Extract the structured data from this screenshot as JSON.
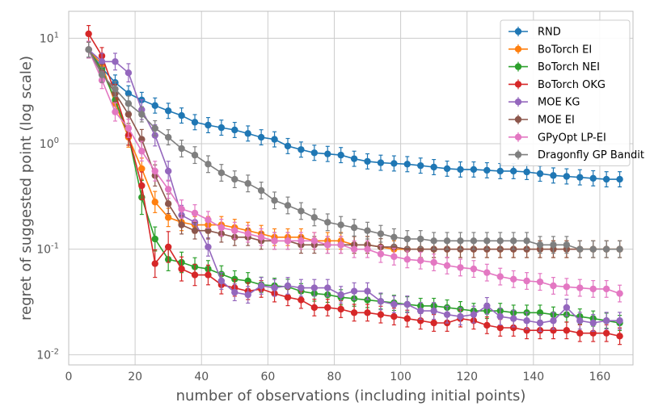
{
  "chart_data": {
    "type": "line",
    "xlabel": "number of observations (including initial points)",
    "ylabel": "regret of suggested point (log scale)",
    "xlim": [
      0,
      170
    ],
    "ylim": [
      0.008,
      18
    ],
    "yscale": "log",
    "xticks": [
      "0",
      "20",
      "40",
      "60",
      "80",
      "100",
      "120",
      "140",
      "160"
    ],
    "yticks": [
      {
        "base": "10",
        "exp": "-2",
        "value": 0.01
      },
      {
        "base": "10",
        "exp": "-1",
        "value": 0.1
      },
      {
        "base": "10",
        "exp": "0",
        "value": 1
      },
      {
        "base": "10",
        "exp": "1",
        "value": 10
      }
    ],
    "legend_position": "top-right",
    "grid": true,
    "series": [
      {
        "name": "RND",
        "color": "#1f77b4",
        "x": [
          6,
          10,
          14,
          18,
          22,
          26,
          30,
          34,
          38,
          42,
          46,
          50,
          54,
          58,
          62,
          66,
          70,
          74,
          78,
          82,
          86,
          90,
          94,
          98,
          102,
          106,
          110,
          114,
          118,
          122,
          126,
          130,
          134,
          138,
          142,
          146,
          150,
          154,
          158,
          162,
          166
        ],
        "y": [
          7.8,
          5.2,
          3.8,
          3.0,
          2.6,
          2.3,
          2.05,
          1.85,
          1.6,
          1.5,
          1.42,
          1.35,
          1.25,
          1.15,
          1.1,
          0.95,
          0.88,
          0.82,
          0.8,
          0.78,
          0.72,
          0.68,
          0.66,
          0.65,
          0.64,
          0.62,
          0.6,
          0.58,
          0.57,
          0.57,
          0.56,
          0.55,
          0.55,
          0.54,
          0.52,
          0.5,
          0.49,
          0.48,
          0.47,
          0.46,
          0.46
        ],
        "err": [
          0.18,
          0.18,
          0.18,
          0.18,
          0.18,
          0.18,
          0.18,
          0.18,
          0.18,
          0.18,
          0.18,
          0.18,
          0.18,
          0.18,
          0.18,
          0.18,
          0.18,
          0.18,
          0.18,
          0.18,
          0.18,
          0.18,
          0.18,
          0.18,
          0.18,
          0.18,
          0.18,
          0.18,
          0.18,
          0.18,
          0.18,
          0.18,
          0.18,
          0.18,
          0.18,
          0.18,
          0.18,
          0.18,
          0.18,
          0.18,
          0.18
        ]
      },
      {
        "name": "BoTorch EI",
        "color": "#ff7f0e",
        "x": [
          6,
          10,
          14,
          18,
          22,
          26,
          30,
          34,
          38,
          42,
          46,
          50,
          54,
          58,
          62,
          66,
          70,
          74,
          78,
          82,
          86,
          90,
          94,
          98,
          102,
          106,
          110,
          114,
          118,
          122,
          126,
          130,
          134,
          138,
          142,
          146,
          150,
          154,
          158,
          162,
          166
        ],
        "y": [
          7.8,
          5.6,
          2.4,
          1.15,
          0.58,
          0.28,
          0.2,
          0.18,
          0.17,
          0.17,
          0.17,
          0.16,
          0.15,
          0.14,
          0.13,
          0.13,
          0.13,
          0.12,
          0.12,
          0.12,
          0.11,
          0.11,
          0.105,
          0.1,
          0.1,
          0.1,
          0.1,
          0.1,
          0.1,
          0.1,
          0.1,
          0.1,
          0.1,
          0.1,
          0.1,
          0.1,
          0.1,
          0.1,
          0.1,
          0.1,
          0.1
        ],
        "err": [
          0.2,
          0.2,
          0.22,
          0.24,
          0.26,
          0.26,
          0.22,
          0.2,
          0.2,
          0.2,
          0.2,
          0.2,
          0.2,
          0.2,
          0.2,
          0.2,
          0.2,
          0.2,
          0.2,
          0.2,
          0.2,
          0.2,
          0.2,
          0.2,
          0.2,
          0.2,
          0.2,
          0.2,
          0.2,
          0.2,
          0.2,
          0.2,
          0.2,
          0.2,
          0.2,
          0.2,
          0.2,
          0.2,
          0.2,
          0.2,
          0.2
        ]
      },
      {
        "name": "BoTorch NEI",
        "color": "#2ca02c",
        "x": [
          6,
          10,
          14,
          18,
          22,
          26,
          30,
          34,
          38,
          42,
          46,
          50,
          54,
          58,
          62,
          66,
          70,
          74,
          78,
          82,
          86,
          90,
          94,
          98,
          102,
          106,
          110,
          114,
          118,
          122,
          126,
          130,
          134,
          138,
          142,
          146,
          150,
          154,
          158,
          162,
          166
        ],
        "y": [
          7.8,
          5.0,
          2.6,
          1.2,
          0.31,
          0.125,
          0.08,
          0.075,
          0.068,
          0.065,
          0.058,
          0.052,
          0.05,
          0.046,
          0.045,
          0.044,
          0.04,
          0.038,
          0.037,
          0.035,
          0.034,
          0.033,
          0.032,
          0.031,
          0.03,
          0.029,
          0.029,
          0.028,
          0.027,
          0.026,
          0.026,
          0.026,
          0.025,
          0.025,
          0.025,
          0.024,
          0.024,
          0.023,
          0.022,
          0.021,
          0.02
        ],
        "err": [
          0.2,
          0.2,
          0.22,
          0.24,
          0.45,
          0.3,
          0.28,
          0.25,
          0.22,
          0.2,
          0.2,
          0.2,
          0.2,
          0.18,
          0.18,
          0.18,
          0.18,
          0.18,
          0.18,
          0.18,
          0.18,
          0.18,
          0.18,
          0.18,
          0.18,
          0.18,
          0.18,
          0.18,
          0.18,
          0.18,
          0.18,
          0.18,
          0.18,
          0.18,
          0.18,
          0.18,
          0.18,
          0.18,
          0.18,
          0.18,
          0.18
        ]
      },
      {
        "name": "BoTorch OKG",
        "color": "#d62728",
        "x": [
          6,
          10,
          14,
          18,
          22,
          26,
          30,
          34,
          38,
          42,
          46,
          50,
          54,
          58,
          62,
          66,
          70,
          74,
          78,
          82,
          86,
          90,
          94,
          98,
          102,
          106,
          110,
          114,
          118,
          122,
          126,
          130,
          134,
          138,
          142,
          146,
          150,
          154,
          158,
          162,
          166
        ],
        "y": [
          11.0,
          6.8,
          3.0,
          1.2,
          0.4,
          0.073,
          0.105,
          0.065,
          0.057,
          0.057,
          0.046,
          0.043,
          0.04,
          0.042,
          0.038,
          0.035,
          0.033,
          0.028,
          0.028,
          0.027,
          0.025,
          0.025,
          0.024,
          0.023,
          0.022,
          0.021,
          0.02,
          0.02,
          0.022,
          0.021,
          0.019,
          0.018,
          0.018,
          0.017,
          0.017,
          0.017,
          0.017,
          0.016,
          0.016,
          0.016,
          0.015
        ],
        "err": [
          0.2,
          0.2,
          0.22,
          0.24,
          0.35,
          0.35,
          0.4,
          0.3,
          0.26,
          0.24,
          0.22,
          0.2,
          0.2,
          0.2,
          0.2,
          0.2,
          0.2,
          0.2,
          0.2,
          0.2,
          0.2,
          0.2,
          0.2,
          0.2,
          0.2,
          0.2,
          0.2,
          0.2,
          0.2,
          0.2,
          0.2,
          0.2,
          0.2,
          0.2,
          0.2,
          0.2,
          0.2,
          0.2,
          0.2,
          0.2,
          0.2
        ]
      },
      {
        "name": "MOE KG",
        "color": "#9467bd",
        "x": [
          6,
          10,
          14,
          18,
          22,
          26,
          30,
          34,
          38,
          42,
          46,
          50,
          54,
          58,
          62,
          66,
          70,
          74,
          78,
          82,
          86,
          90,
          94,
          98,
          102,
          106,
          110,
          114,
          118,
          122,
          126,
          130,
          134,
          138,
          142,
          146,
          150,
          154,
          158,
          162,
          166
        ],
        "y": [
          7.8,
          6.0,
          6.0,
          4.7,
          2.1,
          1.2,
          0.55,
          0.21,
          0.18,
          0.105,
          0.05,
          0.039,
          0.037,
          0.045,
          0.043,
          0.045,
          0.043,
          0.043,
          0.043,
          0.037,
          0.04,
          0.04,
          0.032,
          0.03,
          0.03,
          0.026,
          0.026,
          0.024,
          0.023,
          0.024,
          0.029,
          0.023,
          0.022,
          0.021,
          0.02,
          0.021,
          0.028,
          0.021,
          0.02,
          0.021,
          0.021
        ],
        "err": [
          0.2,
          0.2,
          0.2,
          0.22,
          0.24,
          0.26,
          0.24,
          0.24,
          0.22,
          0.22,
          0.2,
          0.2,
          0.2,
          0.2,
          0.2,
          0.2,
          0.2,
          0.2,
          0.2,
          0.2,
          0.2,
          0.2,
          0.2,
          0.2,
          0.2,
          0.2,
          0.2,
          0.2,
          0.2,
          0.2,
          0.2,
          0.2,
          0.2,
          0.2,
          0.2,
          0.2,
          0.2,
          0.2,
          0.2,
          0.2,
          0.2
        ]
      },
      {
        "name": "MOE EI",
        "color": "#8c564b",
        "x": [
          6,
          10,
          14,
          18,
          22,
          26,
          30,
          34,
          38,
          42,
          46,
          50,
          54,
          58,
          62,
          66,
          70,
          74,
          78,
          82,
          86,
          90,
          94,
          98,
          102,
          106,
          110,
          114,
          118,
          122,
          126,
          130,
          134,
          138,
          142,
          146,
          150,
          154,
          158,
          162,
          166
        ],
        "y": [
          7.8,
          4.7,
          3.0,
          1.9,
          1.1,
          0.5,
          0.27,
          0.17,
          0.15,
          0.15,
          0.14,
          0.13,
          0.13,
          0.12,
          0.12,
          0.12,
          0.11,
          0.11,
          0.11,
          0.11,
          0.11,
          0.11,
          0.105,
          0.105,
          0.1,
          0.1,
          0.1,
          0.1,
          0.1,
          0.1,
          0.1,
          0.1,
          0.1,
          0.1,
          0.1,
          0.1,
          0.1,
          0.1,
          0.1,
          0.1,
          0.1
        ],
        "err": [
          0.2,
          0.2,
          0.2,
          0.22,
          0.24,
          0.26,
          0.24,
          0.22,
          0.2,
          0.2,
          0.2,
          0.2,
          0.2,
          0.2,
          0.2,
          0.2,
          0.2,
          0.2,
          0.2,
          0.2,
          0.2,
          0.2,
          0.2,
          0.2,
          0.2,
          0.2,
          0.2,
          0.2,
          0.2,
          0.2,
          0.2,
          0.2,
          0.2,
          0.2,
          0.2,
          0.2,
          0.2,
          0.2,
          0.2,
          0.2,
          0.2
        ]
      },
      {
        "name": "GPyOpt LP-EI",
        "color": "#e377c2",
        "x": [
          6,
          10,
          14,
          18,
          22,
          26,
          30,
          34,
          38,
          42,
          46,
          50,
          54,
          58,
          62,
          66,
          70,
          74,
          78,
          82,
          86,
          90,
          94,
          98,
          102,
          106,
          110,
          114,
          118,
          122,
          126,
          130,
          134,
          138,
          142,
          146,
          150,
          154,
          158,
          162,
          166
        ],
        "y": [
          7.8,
          4.0,
          2.0,
          1.4,
          0.85,
          0.55,
          0.37,
          0.24,
          0.22,
          0.19,
          0.16,
          0.15,
          0.14,
          0.13,
          0.12,
          0.12,
          0.12,
          0.12,
          0.11,
          0.11,
          0.1,
          0.1,
          0.09,
          0.085,
          0.08,
          0.078,
          0.075,
          0.07,
          0.067,
          0.065,
          0.06,
          0.055,
          0.052,
          0.05,
          0.049,
          0.045,
          0.044,
          0.043,
          0.042,
          0.042,
          0.038
        ],
        "err": [
          0.2,
          0.2,
          0.22,
          0.22,
          0.24,
          0.24,
          0.22,
          0.22,
          0.2,
          0.2,
          0.2,
          0.2,
          0.2,
          0.2,
          0.2,
          0.2,
          0.2,
          0.2,
          0.2,
          0.2,
          0.2,
          0.2,
          0.2,
          0.2,
          0.2,
          0.2,
          0.2,
          0.2,
          0.2,
          0.2,
          0.2,
          0.2,
          0.2,
          0.2,
          0.2,
          0.2,
          0.2,
          0.2,
          0.2,
          0.2,
          0.2
        ]
      },
      {
        "name": "Dragonfly GP Bandit",
        "color": "#7f7f7f",
        "x": [
          6,
          10,
          14,
          18,
          22,
          26,
          30,
          34,
          38,
          42,
          46,
          50,
          54,
          58,
          62,
          66,
          70,
          74,
          78,
          82,
          86,
          90,
          94,
          98,
          102,
          106,
          110,
          114,
          118,
          122,
          126,
          130,
          134,
          138,
          142,
          146,
          150,
          154,
          158,
          162,
          166
        ],
        "y": [
          7.8,
          4.5,
          3.3,
          2.4,
          1.9,
          1.4,
          1.15,
          0.9,
          0.78,
          0.64,
          0.53,
          0.46,
          0.42,
          0.36,
          0.29,
          0.26,
          0.23,
          0.2,
          0.18,
          0.17,
          0.16,
          0.15,
          0.14,
          0.13,
          0.125,
          0.125,
          0.12,
          0.12,
          0.12,
          0.12,
          0.12,
          0.12,
          0.12,
          0.12,
          0.11,
          0.11,
          0.11,
          0.1,
          0.1,
          0.1,
          0.1
        ],
        "err": [
          0.18,
          0.18,
          0.18,
          0.18,
          0.18,
          0.18,
          0.18,
          0.2,
          0.2,
          0.2,
          0.2,
          0.2,
          0.2,
          0.2,
          0.2,
          0.2,
          0.2,
          0.2,
          0.2,
          0.2,
          0.2,
          0.2,
          0.2,
          0.2,
          0.2,
          0.2,
          0.2,
          0.2,
          0.2,
          0.2,
          0.2,
          0.2,
          0.2,
          0.2,
          0.2,
          0.2,
          0.2,
          0.2,
          0.2,
          0.2,
          0.2
        ]
      }
    ]
  }
}
